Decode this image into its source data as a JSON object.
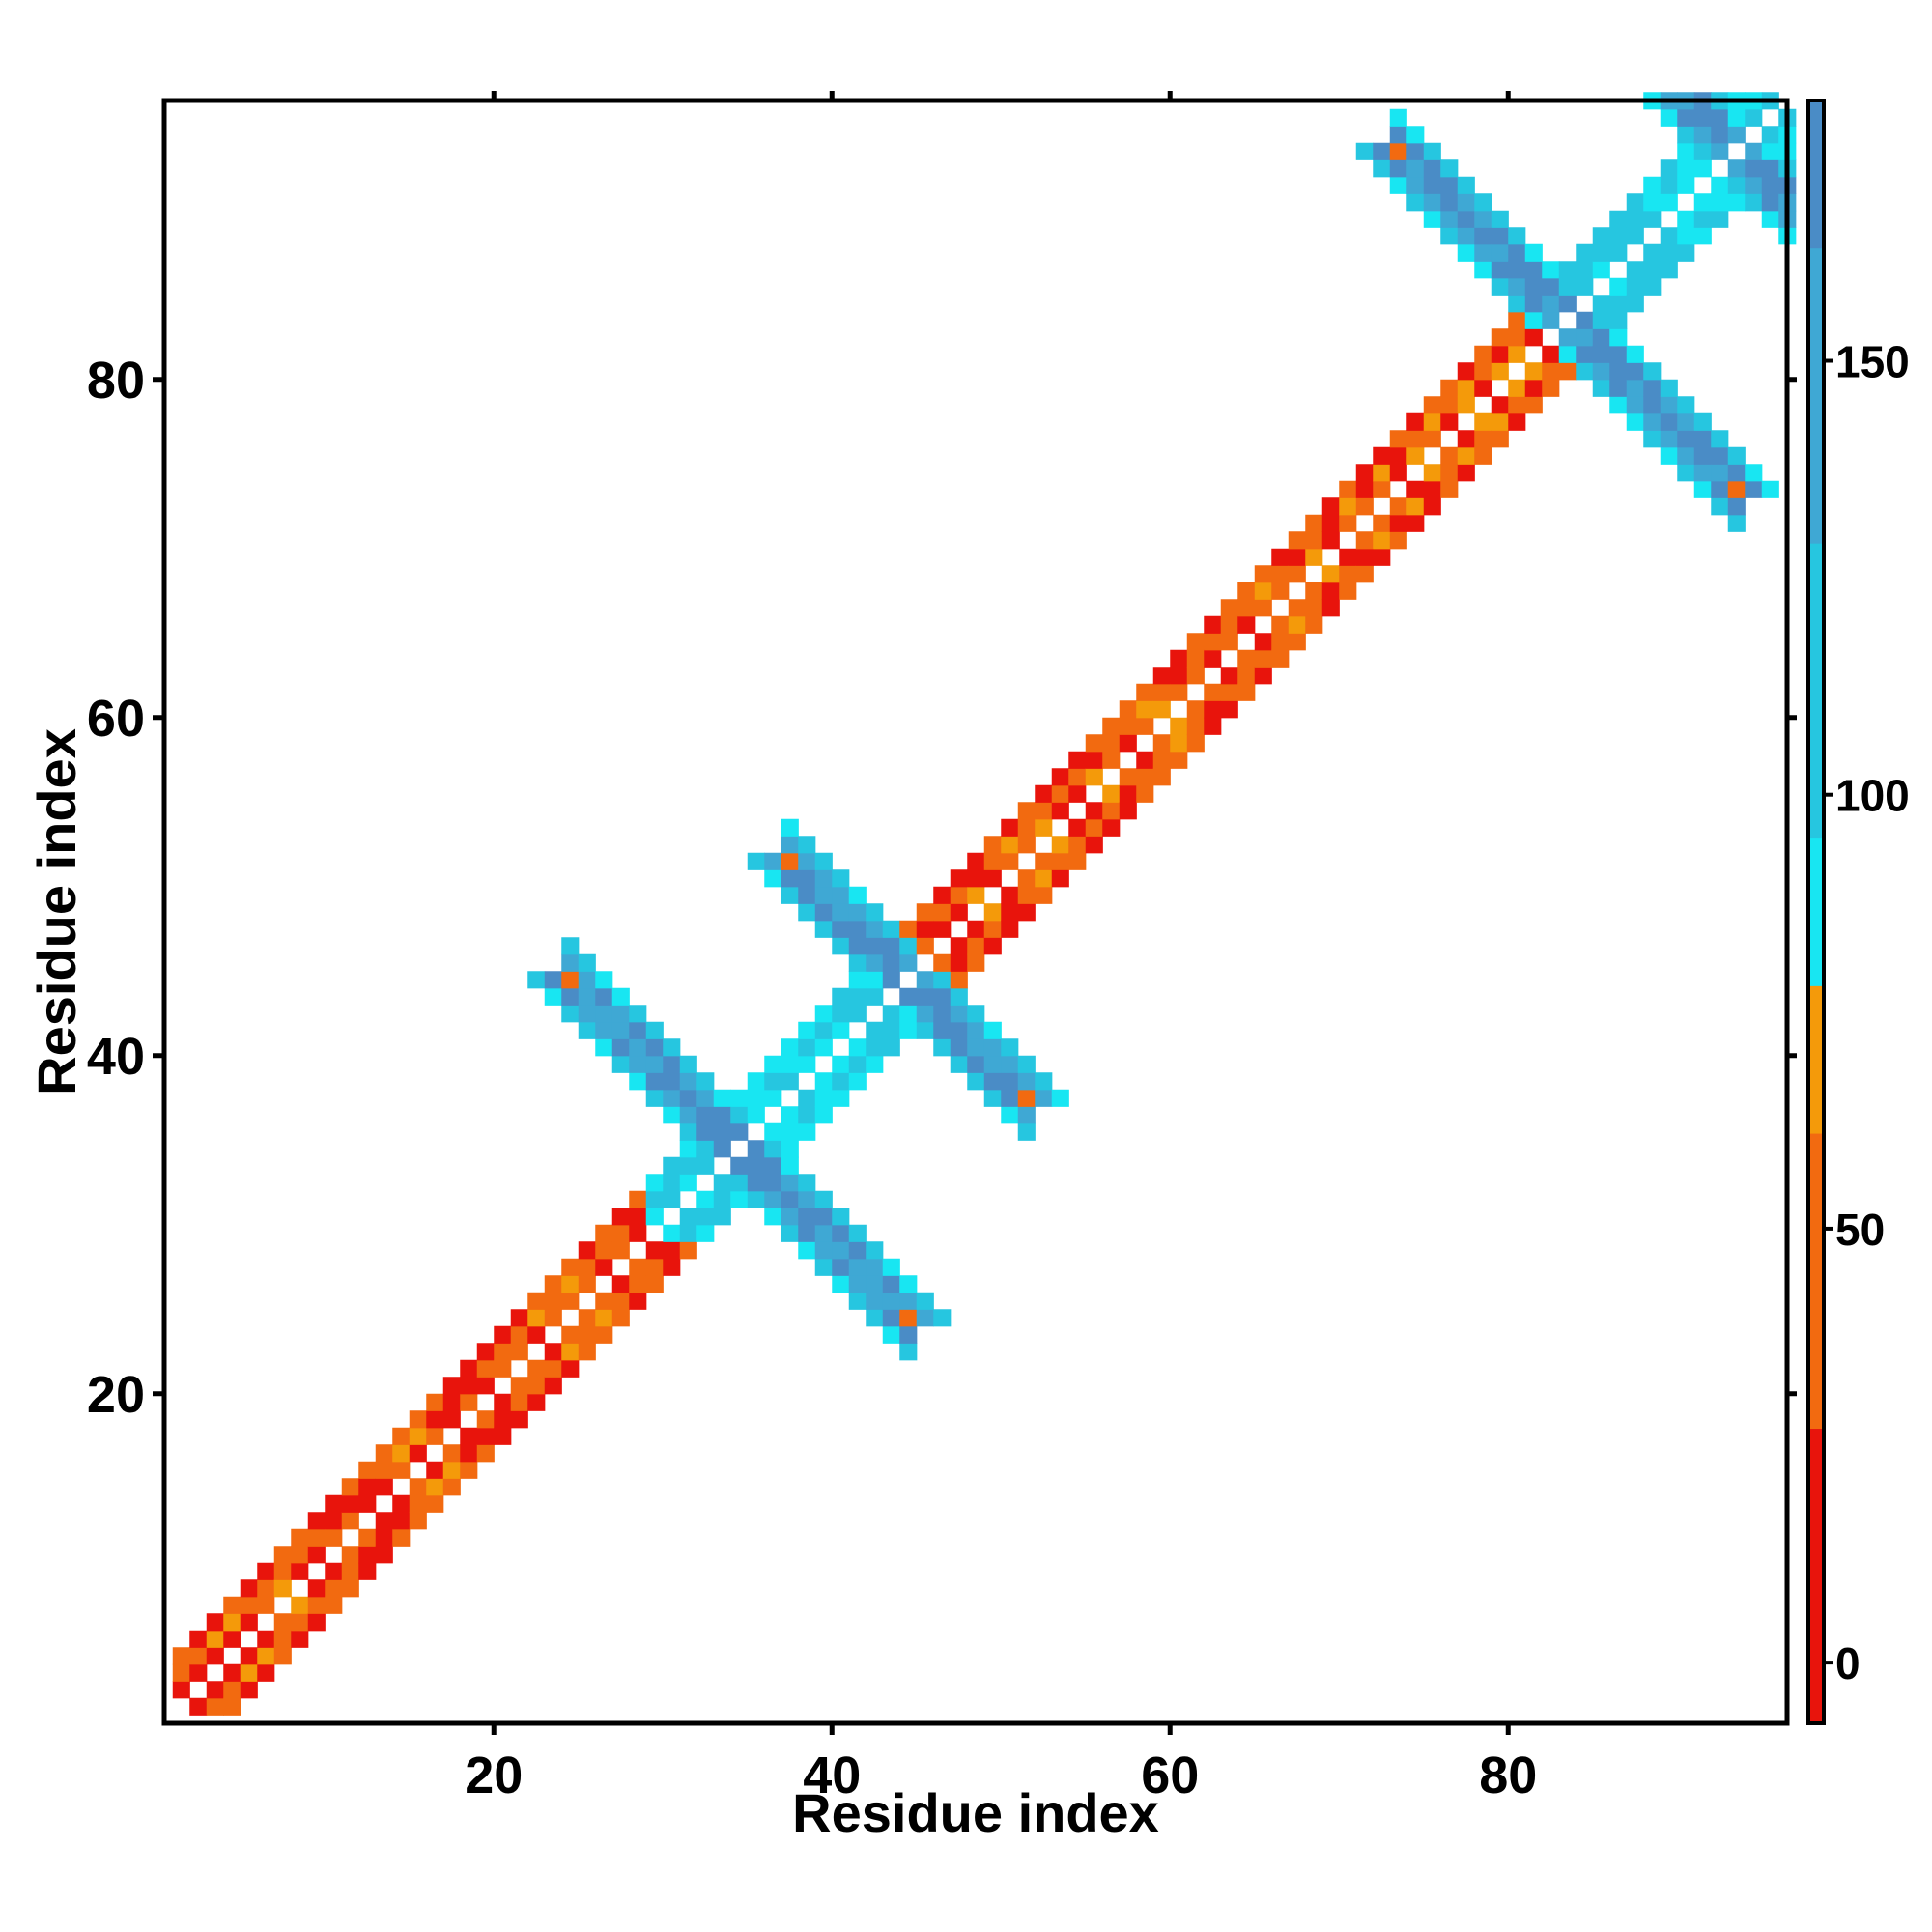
{
  "chart_data": {
    "type": "heatmap",
    "title": "",
    "xlabel": "Residue index",
    "ylabel": "Residue index",
    "xlim": [
      1,
      96
    ],
    "ylim": [
      1,
      96
    ],
    "x_ticks": [
      20,
      40,
      60,
      80
    ],
    "y_ticks": [
      20,
      40,
      60,
      80
    ],
    "colorbar": {
      "ticks": [
        0,
        50,
        100,
        150
      ],
      "range": [
        -7,
        180
      ],
      "bands": [
        {
          "from": -7,
          "to": 27,
          "color": "#e8140c"
        },
        {
          "from": 27,
          "to": 61,
          "color": "#f26a10"
        },
        {
          "from": 61,
          "to": 78,
          "color": "#f49a0a"
        },
        {
          "from": 78,
          "to": 95,
          "color": "#18e6f2"
        },
        {
          "from": 95,
          "to": 129,
          "color": "#26c6e0"
        },
        {
          "from": 129,
          "to": 163,
          "color": "#3fa8d4"
        },
        {
          "from": 163,
          "to": 180,
          "color": "#4a8cc6"
        }
      ]
    },
    "value_scale": {
      "min": -7,
      "max": 180
    },
    "color_key": {
      "red": 10,
      "orange": 45,
      "amber": 70,
      "cyan": 87,
      "sky": 110,
      "blue": 148,
      "steel": 170
    },
    "grid": false,
    "description_free_note": "",
    "blocks": [
      {
        "residues": [
          1,
          28
        ],
        "type": "helix"
      },
      {
        "residues": [
          29,
          35
        ],
        "type": "strand"
      },
      {
        "residues": [
          36,
          43
        ],
        "type": "strand"
      },
      {
        "residues": [
          44,
          82
        ],
        "type": "helix"
      },
      {
        "residues": [
          83,
          96
        ],
        "type": "strand"
      }
    ],
    "sheet_pairs": [
      {
        "center": [
          34,
          34
        ],
        "arm_length": 10
      },
      {
        "center": [
          44,
          44
        ],
        "arm_length": 7
      },
      {
        "center": [
          83,
          83
        ],
        "arm_length": 10
      },
      {
        "center": [
          93,
          93
        ],
        "arm_length": 6
      }
    ]
  }
}
